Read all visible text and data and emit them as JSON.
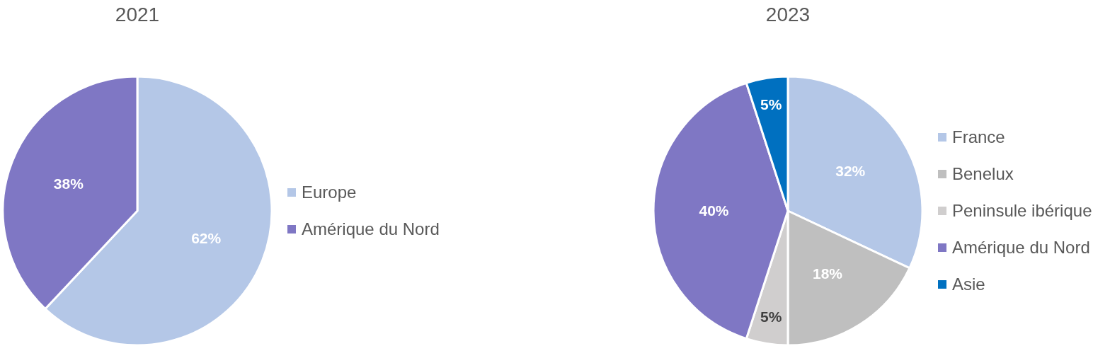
{
  "chart_data": [
    {
      "type": "pie",
      "title": "2021",
      "categories": [
        "Europe",
        "Amérique du Nord"
      ],
      "values": [
        62,
        38
      ],
      "colors": [
        "#b4c7e7",
        "#7f77c4"
      ],
      "value_labels": [
        "62%",
        "38%"
      ],
      "legend": "right"
    },
    {
      "type": "pie",
      "title": "2023",
      "categories": [
        "France",
        "Benelux",
        "Peninsule ibérique",
        "Amérique du Nord",
        "Asie"
      ],
      "values": [
        32,
        18,
        5,
        40,
        5
      ],
      "colors": [
        "#b4c7e7",
        "#bfbfbf",
        "#d0cece",
        "#7f77c4",
        "#0070c0"
      ],
      "value_labels": [
        "32%",
        "18%",
        "5%",
        "40%",
        "5%"
      ],
      "legend": "right"
    }
  ]
}
